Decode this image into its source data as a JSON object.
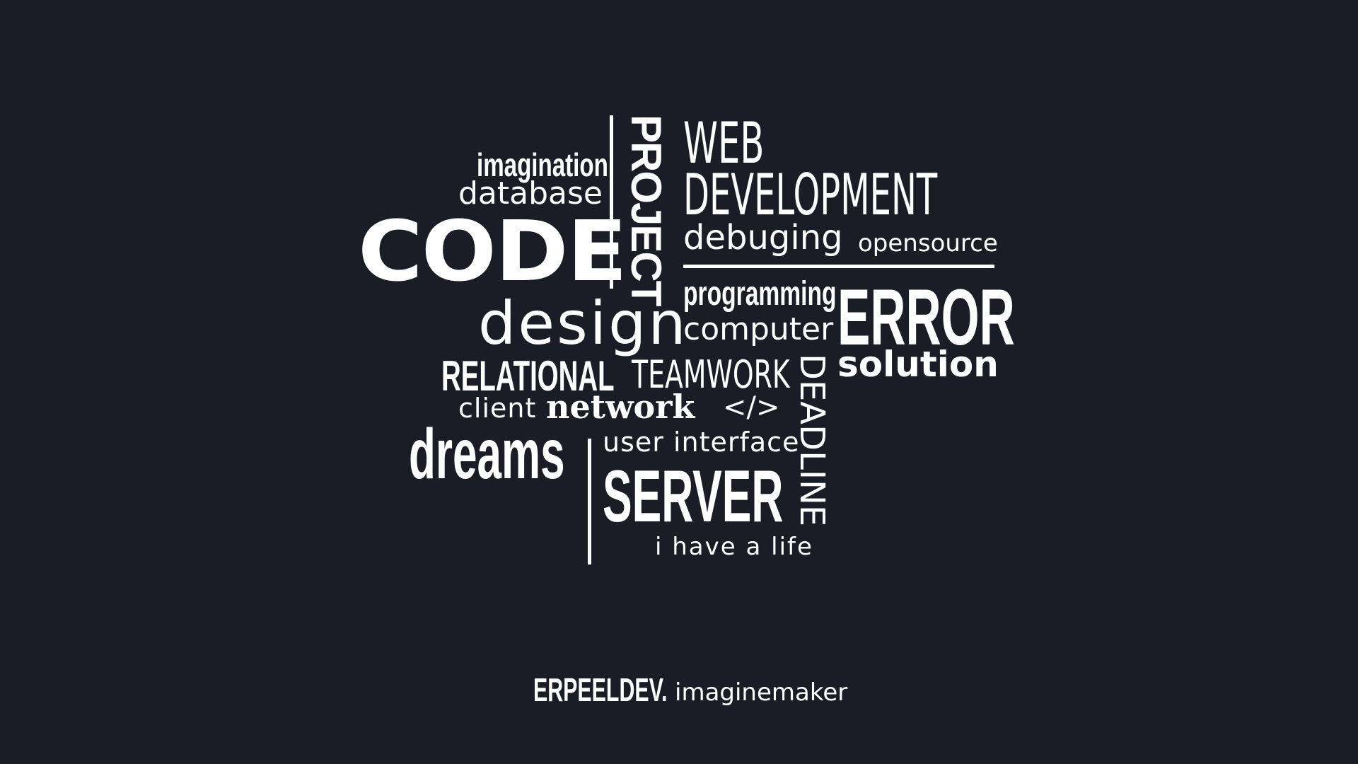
{
  "colors": {
    "background": "#1a1d26",
    "text": "#ffffff"
  },
  "words": {
    "imagination": "imagination",
    "database": "database",
    "code": "CODE",
    "project": "PROJECT",
    "web": "WEB",
    "development": "DEVELOPMENT",
    "debuging": "debuging",
    "opensource": "opensource",
    "programming": "programming",
    "error": "ERROR",
    "design": "design",
    "computer": "computer",
    "solution": "solution",
    "relational": "RELATIONAL",
    "teamwork": "TEAMWORK",
    "deadline": "DEADLINE",
    "client": "client",
    "network": "network",
    "tag": "</>",
    "dreams": "dreams",
    "user_interface": "user interface",
    "server": "SERVER",
    "life": "i have a life"
  },
  "footer": {
    "brand": "ERPEELDEV.",
    "tail": "imaginemaker"
  }
}
